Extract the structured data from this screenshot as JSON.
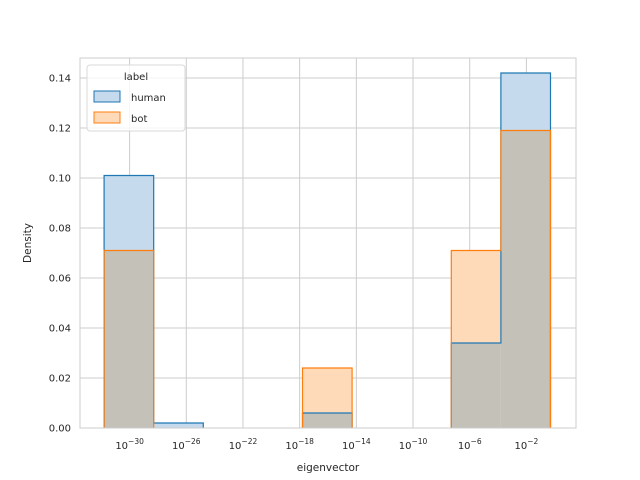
{
  "chart_data": {
    "type": "histogram",
    "xlabel": "eigenvector",
    "ylabel": "Density",
    "x_scale": "log",
    "xlim": [
      -33.5,
      1.5
    ],
    "ylim": [
      0,
      0.148
    ],
    "grid": true,
    "x_ticks": [
      {
        "base": "10",
        "exp": "−30",
        "value": -30
      },
      {
        "base": "10",
        "exp": "−26",
        "value": -26
      },
      {
        "base": "10",
        "exp": "−22",
        "value": -22
      },
      {
        "base": "10",
        "exp": "−18",
        "value": -18
      },
      {
        "base": "10",
        "exp": "−14",
        "value": -14
      },
      {
        "base": "10",
        "exp": "−10",
        "value": -10
      },
      {
        "base": "10",
        "exp": "−6",
        "value": -6
      },
      {
        "base": "10",
        "exp": "−2",
        "value": -2
      }
    ],
    "y_ticks": [
      "0.00",
      "0.02",
      "0.04",
      "0.06",
      "0.08",
      "0.10",
      "0.12",
      "0.14"
    ],
    "bin_edges_log10": [
      -31.8,
      -28.3,
      -24.8,
      -21.3,
      -17.8,
      -14.3,
      -10.8,
      -7.3,
      -3.8,
      -0.3
    ],
    "legend": {
      "title": "label",
      "position": "top-left"
    },
    "series": [
      {
        "name": "human",
        "color": "#1f77b4",
        "fill": "#c5daec",
        "values": [
          0.101,
          0.002,
          0.0,
          0.0,
          0.006,
          0.0,
          0.0,
          0.034,
          0.142
        ]
      },
      {
        "name": "bot",
        "color": "#ff7f0e",
        "fill": "#ffdab9",
        "values": [
          0.071,
          0.0,
          0.0,
          0.0,
          0.024,
          0.0,
          0.0,
          0.071,
          0.119
        ]
      }
    ],
    "overlap_fill": "#c4c1b8"
  }
}
